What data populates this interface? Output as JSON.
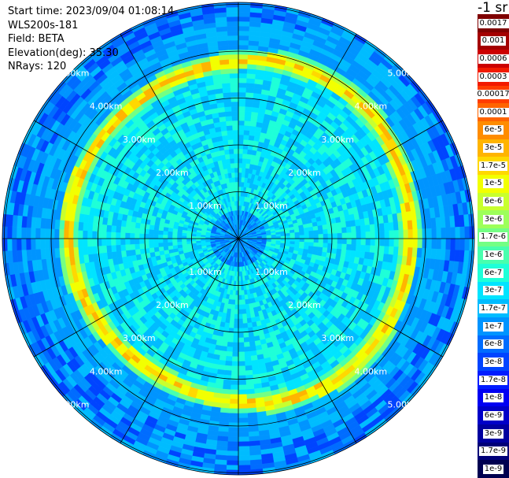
{
  "header": {
    "start_time": "Start time: 2023/09/04 01:08:14",
    "instrument": "WLS200s-181",
    "field": "Field: BETA",
    "elevation": "Elevation(deg): 35.30",
    "nrays": "NRays: 120"
  },
  "ppi": {
    "n_rays": 120,
    "spokes": 12,
    "ring_labels": [
      "1.00km",
      "2.00km",
      "3.00km",
      "4.00km",
      "5.00km"
    ],
    "max_range_km": 5.0
  },
  "colorbar": {
    "title": "-1 sr",
    "entries": [
      {
        "label": "0.0017",
        "color": "#7f0000"
      },
      {
        "label": "0.001",
        "color": "#a40000"
      },
      {
        "label": "0.0006",
        "color": "#cc0000"
      },
      {
        "label": "0.0003",
        "color": "#f21a00"
      },
      {
        "label": "0.00017",
        "color": "#ff3d00"
      },
      {
        "label": "0.0001",
        "color": "#ff6400"
      },
      {
        "label": "6e-5",
        "color": "#ff8c00"
      },
      {
        "label": "3e-5",
        "color": "#ffb400"
      },
      {
        "label": "1.7e-5",
        "color": "#ffd800"
      },
      {
        "label": "1e-5",
        "color": "#f2ff00"
      },
      {
        "label": "6e-6",
        "color": "#c8ff2e"
      },
      {
        "label": "3e-6",
        "color": "#9dff5a"
      },
      {
        "label": "1.7e-6",
        "color": "#73ff84"
      },
      {
        "label": "1e-6",
        "color": "#48ffae"
      },
      {
        "label": "6e-7",
        "color": "#1effd8"
      },
      {
        "label": "3e-7",
        "color": "#00e4ff"
      },
      {
        "label": "1.7e-7",
        "color": "#00bcff"
      },
      {
        "label": "1e-7",
        "color": "#0094ff"
      },
      {
        "label": "6e-8",
        "color": "#006cff"
      },
      {
        "label": "3e-8",
        "color": "#0044ff"
      },
      {
        "label": "1.7e-8",
        "color": "#001cff"
      },
      {
        "label": "1e-8",
        "color": "#0000f2"
      },
      {
        "label": "6e-9",
        "color": "#0000c8"
      },
      {
        "label": "3e-9",
        "color": "#00009f"
      },
      {
        "label": "1.7e-9",
        "color": "#000078"
      },
      {
        "label": "1e-9",
        "color": "#000050"
      }
    ]
  }
}
